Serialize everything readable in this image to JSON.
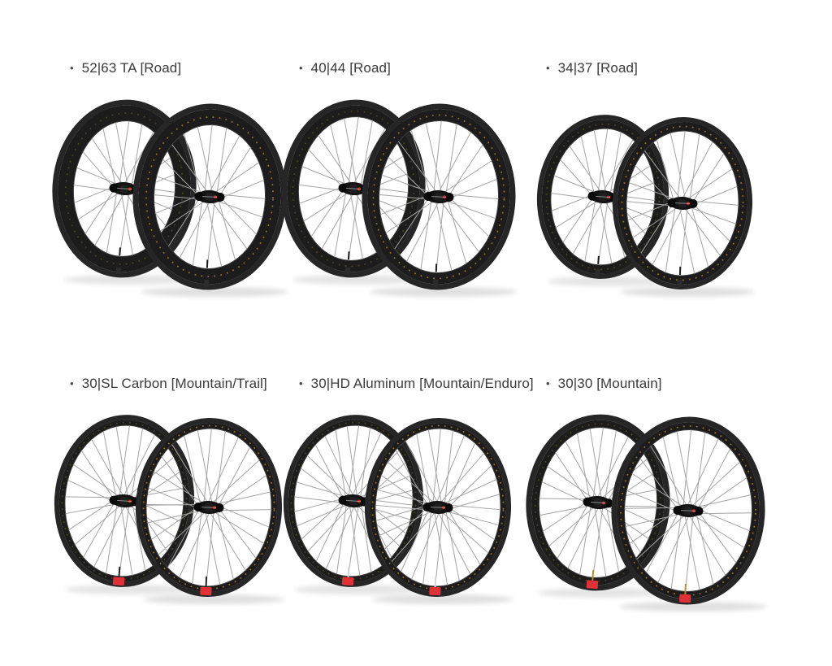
{
  "page": {
    "background": "#ffffff",
    "description": "Product grid of six bicycle wheelset images with bulleted model labels"
  },
  "products": [
    {
      "label": "52|63 TA [Road]",
      "type": "road"
    },
    {
      "label": "40|44 [Road]",
      "type": "road"
    },
    {
      "label": "34|37 [Road]",
      "type": "road"
    },
    {
      "label": "30|SL Carbon [Mountain/Trail]",
      "type": "mountain"
    },
    {
      "label": "30|HD Aluminum [Mountain/Enduro]",
      "type": "mountain"
    },
    {
      "label": "30|30 [Mountain]",
      "type": "mountain"
    }
  ],
  "icons": {
    "bullet": "•",
    "wheelset": "wheelset-image"
  },
  "colors": {
    "text": "#3b3b3b",
    "bullet": "#4a4a4a",
    "tire": "#262626",
    "rim": "#1c1c1c",
    "rim_inner_edge": "#3d3d3d",
    "spoke": "#a3a3a3",
    "hub": "#141414",
    "decal_dots_gold": "#9b7c3e",
    "hub_accent_red": "#c42127",
    "valve_tag_red": "#e03236",
    "shadow": "#000000"
  }
}
